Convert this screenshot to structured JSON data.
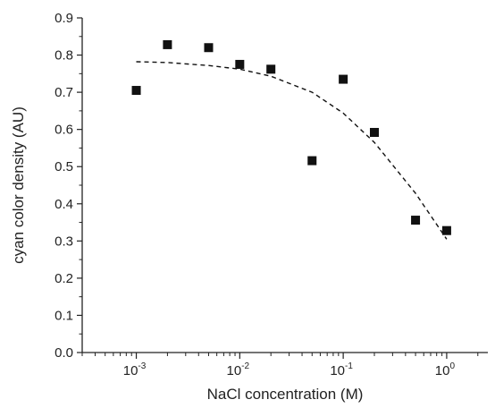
{
  "chart_data": {
    "type": "scatter",
    "title": "",
    "xlabel": "NaCl concentration (M)",
    "ylabel": "cyan color density (AU)",
    "xscale": "log",
    "xlim": [
      0.0003,
      2.5
    ],
    "ylim": [
      0.0,
      0.9
    ],
    "grid": false,
    "x_ticks": [
      {
        "value": 0.001,
        "base": "10",
        "exp": "-3"
      },
      {
        "value": 0.01,
        "base": "10",
        "exp": "-2"
      },
      {
        "value": 0.1,
        "base": "10",
        "exp": "-1"
      },
      {
        "value": 1,
        "base": "10",
        "exp": "0"
      }
    ],
    "y_ticks": [
      "0.0",
      "0.1",
      "0.2",
      "0.3",
      "0.4",
      "0.5",
      "0.6",
      "0.7",
      "0.8",
      "0.9"
    ],
    "series": [
      {
        "marker": "square",
        "color": "#111111",
        "points": [
          {
            "x": 0.001,
            "y": 0.705
          },
          {
            "x": 0.002,
            "y": 0.828
          },
          {
            "x": 0.005,
            "y": 0.82
          },
          {
            "x": 0.01,
            "y": 0.775
          },
          {
            "x": 0.02,
            "y": 0.762
          },
          {
            "x": 0.05,
            "y": 0.516
          },
          {
            "x": 0.1,
            "y": 0.735
          },
          {
            "x": 0.2,
            "y": 0.592
          },
          {
            "x": 0.5,
            "y": 0.356
          },
          {
            "x": 1.0,
            "y": 0.328
          }
        ]
      },
      {
        "kind": "fit",
        "line_style": "dashed",
        "color": "#111111",
        "points": [
          {
            "x": 0.001,
            "y": 0.782
          },
          {
            "x": 0.002,
            "y": 0.78
          },
          {
            "x": 0.005,
            "y": 0.772
          },
          {
            "x": 0.01,
            "y": 0.762
          },
          {
            "x": 0.02,
            "y": 0.743
          },
          {
            "x": 0.05,
            "y": 0.7
          },
          {
            "x": 0.1,
            "y": 0.644
          },
          {
            "x": 0.2,
            "y": 0.565
          },
          {
            "x": 0.5,
            "y": 0.428
          },
          {
            "x": 1.0,
            "y": 0.305
          }
        ]
      }
    ]
  }
}
